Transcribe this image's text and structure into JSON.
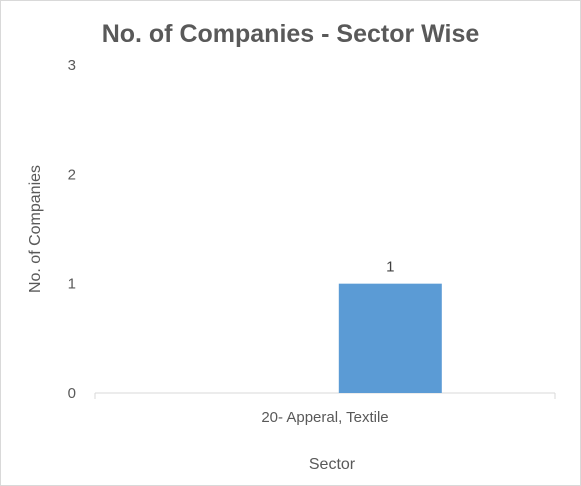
{
  "chart_data": {
    "type": "bar",
    "title": "No. of Companies - Sector Wise",
    "xlabel": "Sector",
    "ylabel": "No. of Companies",
    "categories": [
      "20- Apperal, Textile"
    ],
    "values": [
      1
    ],
    "data_labels": [
      "1"
    ],
    "ylim": [
      0,
      3
    ],
    "yticks": [
      "0",
      "1",
      "2",
      "3"
    ],
    "grid": false,
    "legend": "none",
    "bar_color": "#5b9bd5"
  }
}
